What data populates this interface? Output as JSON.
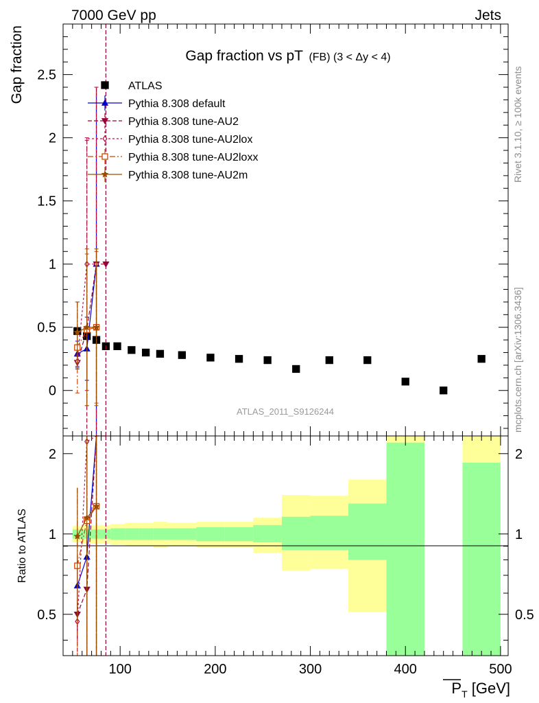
{
  "header": {
    "left": "7000 GeV pp",
    "right": "Jets",
    "title_main": "Gap fraction vs pT",
    "title_sub": "(FB)  (3 < Δy < 4)",
    "analysis_id": "ATLAS_2011_S9126244",
    "side_rivet": "Rivet 3.1.10, ≥ 100k events",
    "side_mcplots": "mcplots.cern.ch [arXiv:1306.3436]"
  },
  "colors": {
    "atlas": "#000000",
    "default": "#0000cc",
    "au2": "#990033",
    "au2lox": "#b3154d",
    "au2loxx": "#cc4400",
    "au2m": "#994d00",
    "band_inner": "#99ff99",
    "band_outer": "#ffff99"
  },
  "chart_data": [
    {
      "type": "scatter",
      "panel": "main",
      "ylabel": "Gap fraction",
      "xlim": [
        40,
        508
      ],
      "ylim": [
        -0.36,
        2.9
      ],
      "yticks": [
        0,
        0.5,
        1,
        1.5,
        2,
        2.5
      ],
      "ytick_labels": [
        "0",
        "0.5",
        "1",
        "1.5",
        "2",
        "2.5"
      ],
      "legend_position": "top-left",
      "series": [
        {
          "name": "ATLAS",
          "color_key": "atlas",
          "x": [
            55,
            65,
            75,
            85,
            97,
            112,
            127,
            142,
            165,
            195,
            225,
            255,
            285,
            320,
            360,
            400,
            440,
            480
          ],
          "y": [
            0.47,
            0.43,
            0.4,
            0.35,
            0.35,
            0.32,
            0.3,
            0.29,
            0.28,
            0.26,
            0.25,
            0.24,
            0.17,
            0.24,
            0.24,
            0.07,
            0.0,
            0.25
          ]
        },
        {
          "name": "Pythia 8.308 default",
          "color_key": "default",
          "x": [
            55,
            65,
            75
          ],
          "y": [
            0.29,
            0.33,
            1.0
          ],
          "yerr": [
            0.1,
            0.25,
            1.4
          ]
        },
        {
          "name": "Pythia 8.308 tune-AU2",
          "color_key": "au2",
          "x": [
            55,
            65,
            75,
            85
          ],
          "y": [
            0.22,
            0.48,
            1.0,
            1.0
          ],
          "yerr": [
            0.05,
            1.5,
            1.4,
            2.45
          ]
        },
        {
          "name": "Pythia 8.308 tune-AU2lox",
          "color_key": "au2lox",
          "x": [
            55,
            65,
            75
          ],
          "y": [
            0.23,
            1.0,
            1.0
          ],
          "yerr": [
            0.05,
            1.0,
            1.4
          ]
        },
        {
          "name": "Pythia 8.308 tune-AU2loxx",
          "color_key": "au2loxx",
          "x": [
            55,
            65,
            75
          ],
          "y": [
            0.34,
            0.48,
            0.5
          ],
          "yerr": [
            0.36,
            0.6,
            0.6
          ]
        },
        {
          "name": "Pythia 8.308 tune-AU2m",
          "color_key": "au2m",
          "x": [
            55,
            65,
            75
          ],
          "y": [
            0.46,
            0.5,
            0.5
          ],
          "yerr": [
            0.24,
            0.62,
            0.62
          ]
        }
      ]
    },
    {
      "type": "line",
      "panel": "ratio",
      "ylabel": "Ratio to ATLAS",
      "xlabel": "P_T [GeV]",
      "xlim": [
        40,
        508
      ],
      "ylim": [
        0.35,
        2.33
      ],
      "log_y": true,
      "yticks": [
        0.5,
        1,
        2
      ],
      "ytick_labels": [
        "0.5",
        "1",
        "2"
      ],
      "xticks": [
        100,
        200,
        300,
        400,
        500
      ],
      "xtick_labels": [
        "100",
        "200",
        "300",
        "400",
        "500"
      ],
      "bands": {
        "edges": [
          50,
          60,
          70,
          80,
          90,
          105,
          120,
          135,
          150,
          180,
          210,
          240,
          270,
          300,
          340,
          380,
          420,
          460,
          500
        ],
        "inner_lo": [
          0.96,
          0.96,
          0.96,
          0.96,
          0.95,
          0.95,
          0.95,
          0.95,
          0.95,
          0.94,
          0.94,
          0.93,
          0.87,
          0.87,
          0.8,
          0.35,
          null,
          0.35
        ],
        "inner_hi": [
          1.04,
          1.04,
          1.04,
          1.04,
          1.05,
          1.05,
          1.05,
          1.05,
          1.05,
          1.06,
          1.06,
          1.08,
          1.16,
          1.17,
          1.3,
          2.2,
          null,
          1.85
        ],
        "outer_lo": [
          0.93,
          0.92,
          0.92,
          0.92,
          0.91,
          0.9,
          0.9,
          0.89,
          0.9,
          0.89,
          0.89,
          0.85,
          0.73,
          0.74,
          0.51,
          0.35,
          null,
          0.35
        ],
        "outer_hi": [
          1.07,
          1.08,
          1.08,
          1.08,
          1.09,
          1.1,
          1.1,
          1.11,
          1.1,
          1.11,
          1.11,
          1.15,
          1.4,
          1.39,
          1.6,
          2.33,
          null,
          2.33
        ]
      },
      "series": [
        {
          "name": "Pythia 8.308 default",
          "color_key": "default",
          "x": [
            55,
            65,
            75
          ],
          "y": [
            0.64,
            0.82,
            2.33
          ]
        },
        {
          "name": "Pythia 8.308 tune-AU2",
          "color_key": "au2",
          "x": [
            55,
            65,
            75,
            85
          ],
          "y": [
            0.5,
            0.62,
            2.33,
            2.33
          ]
        },
        {
          "name": "Pythia 8.308 tune-AU2lox",
          "color_key": "au2lox",
          "x": [
            55,
            65,
            75
          ],
          "y": [
            0.47,
            2.22,
            2.33
          ]
        },
        {
          "name": "Pythia 8.308 tune-AU2loxx",
          "color_key": "au2loxx",
          "x": [
            55,
            65,
            75
          ],
          "y": [
            0.76,
            1.12,
            1.27
          ]
        },
        {
          "name": "Pythia 8.308 tune-AU2m",
          "color_key": "au2m",
          "x": [
            55,
            65,
            75
          ],
          "y": [
            0.98,
            1.15,
            1.27
          ]
        }
      ]
    }
  ]
}
